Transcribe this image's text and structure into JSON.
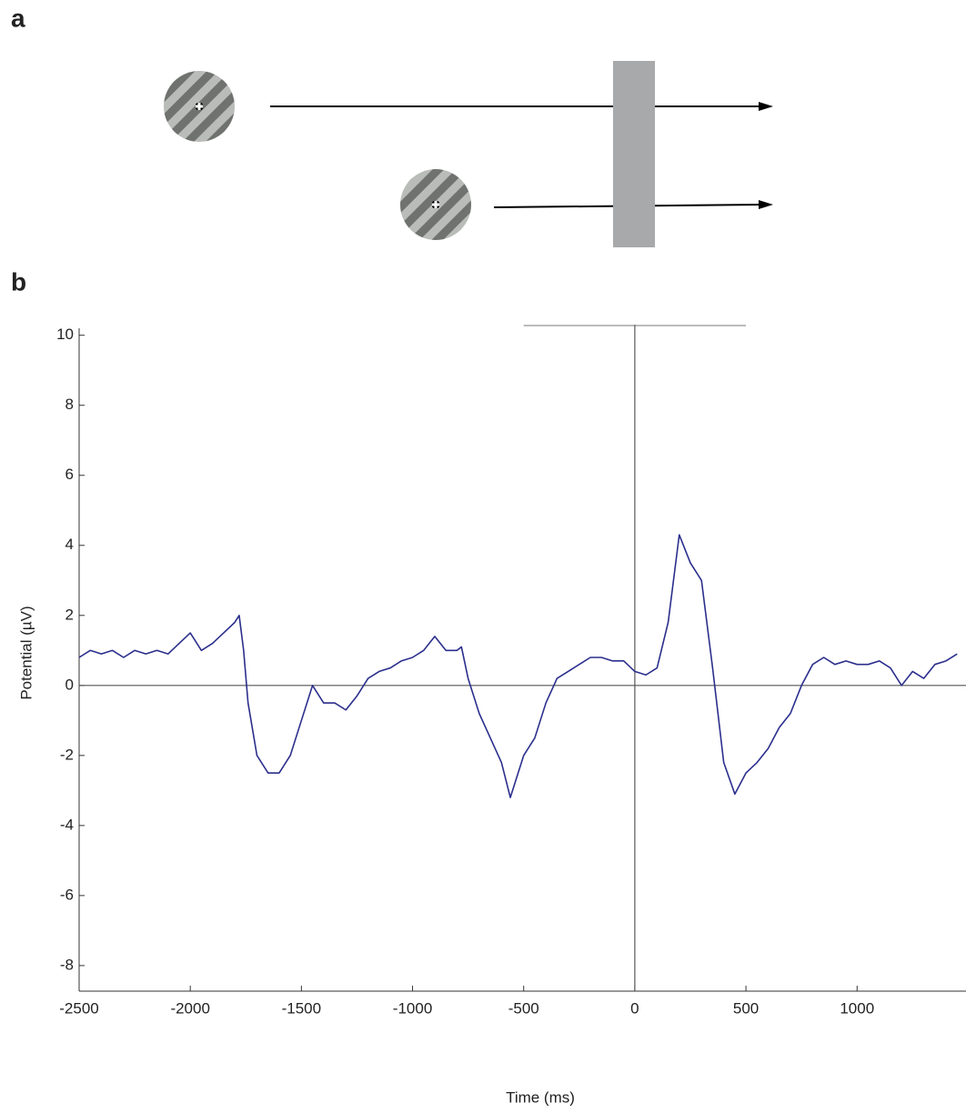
{
  "panel_labels": [
    "a",
    "b"
  ],
  "chart_data": {
    "type": "line",
    "x_label": "Time (ms)",
    "y_label": "Potential (µV)",
    "x": [
      -2500,
      -2450,
      -2400,
      -2350,
      -2300,
      -2250,
      -2200,
      -2150,
      -2100,
      -2050,
      -2000,
      -1950,
      -1900,
      -1850,
      -1800,
      -1780,
      -1760,
      -1740,
      -1700,
      -1650,
      -1600,
      -1550,
      -1500,
      -1450,
      -1400,
      -1350,
      -1300,
      -1250,
      -1200,
      -1150,
      -1100,
      -1050,
      -1000,
      -950,
      -900,
      -850,
      -800,
      -780,
      -750,
      -700,
      -650,
      -600,
      -560,
      -500,
      -450,
      -400,
      -350,
      -300,
      -250,
      -200,
      -150,
      -100,
      -50,
      0,
      50,
      100,
      150,
      200,
      250,
      300,
      350,
      400,
      450,
      500,
      550,
      600,
      650,
      700,
      750,
      800,
      850,
      900,
      950,
      1000,
      1050,
      1100,
      1150,
      1200,
      1250,
      1300,
      1350,
      1400,
      1450
    ],
    "values": [
      0.8,
      1.0,
      0.9,
      1.0,
      0.8,
      1.0,
      0.9,
      1.0,
      0.9,
      1.2,
      1.5,
      1.0,
      1.2,
      1.5,
      1.8,
      2.0,
      1.0,
      -0.5,
      -2.0,
      -2.5,
      -2.5,
      -2.0,
      -1.0,
      0.0,
      -0.5,
      -0.5,
      -0.7,
      -0.3,
      0.2,
      0.4,
      0.5,
      0.7,
      0.8,
      1.0,
      1.4,
      1.0,
      1.0,
      1.1,
      0.2,
      -0.8,
      -1.5,
      -2.2,
      -3.2,
      -2.0,
      -1.5,
      -0.5,
      0.2,
      0.4,
      0.6,
      0.8,
      0.8,
      0.7,
      0.7,
      0.4,
      0.3,
      0.5,
      1.8,
      4.3,
      3.5,
      3.0,
      0.5,
      -2.2,
      -3.1,
      -2.5,
      -2.2,
      -1.8,
      -1.2,
      -0.8,
      0.0,
      0.6,
      0.8,
      0.6,
      0.7,
      0.6,
      0.6,
      0.7,
      0.5,
      0.0,
      0.4,
      0.2,
      0.6,
      0.7,
      0.9
    ],
    "color": "#2b2f8c",
    "xlim": [
      -2500,
      1490
    ],
    "ylim": [
      -8.73,
      10.2
    ],
    "xticks": [
      -2500,
      -2000,
      -1500,
      -1000,
      -500,
      0,
      500,
      1000
    ],
    "yticks": [
      -8,
      -6,
      -4,
      -2,
      0,
      2,
      4,
      6,
      8,
      10
    ],
    "vlines": [
      0
    ],
    "hlines": [
      0
    ],
    "span": [
      -500,
      500
    ]
  }
}
